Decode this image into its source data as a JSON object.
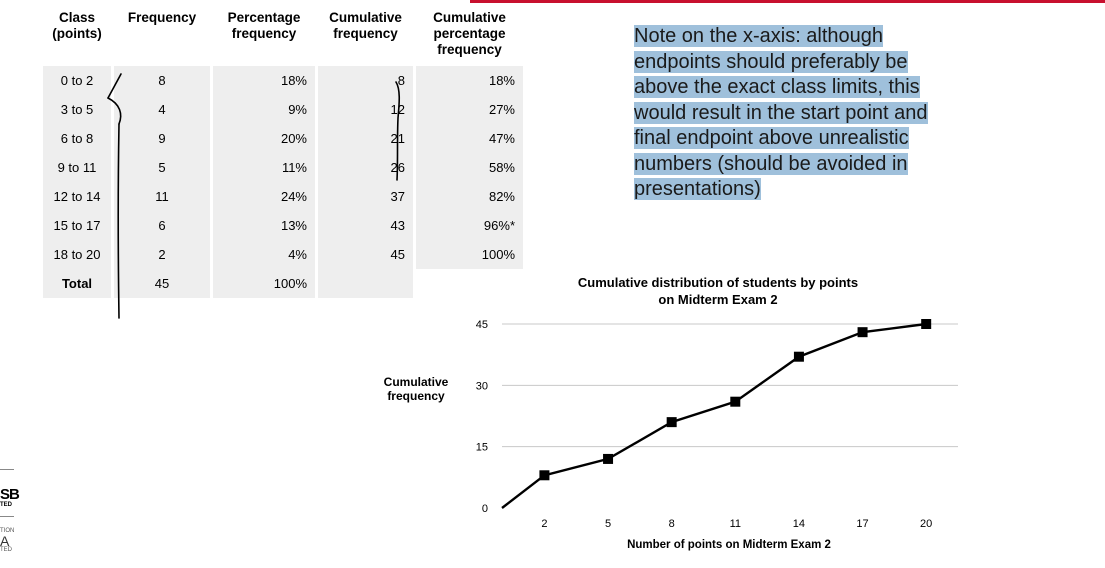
{
  "table": {
    "headers": [
      [
        "Class",
        "(points)"
      ],
      [
        "Frequency"
      ],
      [
        "Percentage",
        "frequency"
      ],
      [
        "Cumulative",
        "frequency"
      ],
      [
        "Cumulative",
        "percentage",
        "frequency"
      ]
    ],
    "rows": [
      {
        "class": "0 to 2",
        "freq": "8",
        "pct": "18%",
        "cf": "8",
        "cp": "18%"
      },
      {
        "class": "3 to 5",
        "freq": "4",
        "pct": "9%",
        "cf": "12",
        "cp": "27%"
      },
      {
        "class": "6 to 8",
        "freq": "9",
        "pct": "20%",
        "cf": "21",
        "cp": "47%"
      },
      {
        "class": "9 to 11",
        "freq": "5",
        "pct": "11%",
        "cf": "26",
        "cp": "58%"
      },
      {
        "class": "12 to 14",
        "freq": "11",
        "pct": "24%",
        "cf": "37",
        "cp": "82%"
      },
      {
        "class": "15 to 17",
        "freq": "6",
        "pct": "13%",
        "cf": "43",
        "cp": "96%*"
      },
      {
        "class": "18 to 20",
        "freq": "2",
        "pct": "4%",
        "cf": "45",
        "cp": "100%"
      }
    ],
    "total": {
      "class": "Total",
      "freq": "45",
      "pct": "100%",
      "cf": "",
      "cp": ""
    }
  },
  "note": "Note on the x-axis: although endpoints should preferably be above the exact class limits, this would result in the start point and final endpoint above unrealistic numbers (should be avoided in presentations)",
  "logos": {
    "l1": "SB",
    "l1s": "TED",
    "l2a": "TION",
    "l2": "A",
    "l2b": "TED"
  },
  "chart_data": {
    "type": "line",
    "title": "Cumulative distribution of students by points on Midterm Exam 2",
    "xlabel": "Number of points on Midterm Exam 2",
    "ylabel": "Cumulative frequency",
    "x": [
      -1,
      2,
      5,
      8,
      11,
      14,
      17,
      20
    ],
    "y": [
      0,
      8,
      12,
      21,
      26,
      37,
      43,
      45
    ],
    "xticks": [
      2,
      5,
      8,
      11,
      14,
      17,
      20
    ],
    "yticks": [
      0,
      15,
      30,
      45
    ],
    "ylim": [
      0,
      45
    ],
    "grid": "horizontal",
    "marker": "square",
    "line_color": "#000000"
  }
}
